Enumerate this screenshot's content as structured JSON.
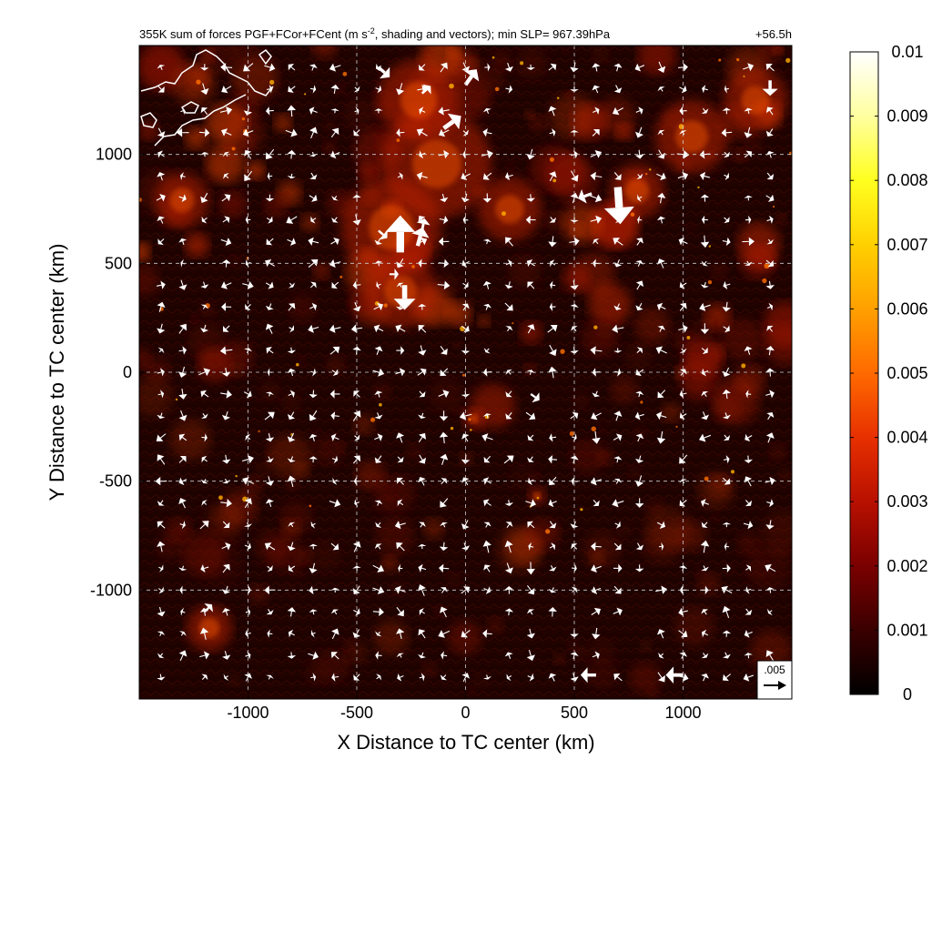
{
  "chart_data": {
    "type": "heatmap",
    "title": "355K sum of forces PGF+FCor+FCent (m s",
    "title_superscript": "-2",
    "title_suffix": ", shading and vectors); min SLP= 967.39hPa",
    "time_label": "+56.5h",
    "xlabel": "X Distance to TC center (km)",
    "ylabel": "Y Distance to TC center (km)",
    "xlim": [
      -1500,
      1500
    ],
    "ylim": [
      -1500,
      1500
    ],
    "x_ticks": [
      -1000,
      -500,
      0,
      500,
      1000
    ],
    "y_ticks": [
      -1000,
      -500,
      0,
      500,
      1000
    ],
    "x_tick_labels": [
      "-1000",
      "-500",
      "0",
      "500",
      "1000"
    ],
    "y_tick_labels": [
      "-1000",
      "-500",
      "0",
      "500",
      "1000"
    ],
    "grid": "dashed",
    "colorbar": {
      "min": 0,
      "max": 0.01,
      "ticks": [
        0,
        0.001,
        0.002,
        0.003,
        0.004,
        0.005,
        0.006,
        0.007,
        0.008,
        0.009,
        0.01
      ],
      "tick_labels": [
        "0",
        "0.001",
        "0.002",
        "0.003",
        "0.004",
        "0.005",
        "0.006",
        "0.007",
        "0.008",
        "0.009",
        "0.01"
      ],
      "colormap": [
        "#000000",
        "#3a0000",
        "#7a0000",
        "#b81000",
        "#e83000",
        "#ff6a00",
        "#ffa000",
        "#ffd000",
        "#ffff20",
        "#ffffa0",
        "#ffffff"
      ]
    },
    "reference_vector": {
      "label": ".005",
      "value": 0.005
    },
    "vectors": [
      {
        "x": -300,
        "y": 550,
        "u": 0,
        "v": 0.006
      },
      {
        "x": -220,
        "y": 580,
        "u": 0.0008,
        "v": 0.003
      },
      {
        "x": -350,
        "y": 450,
        "u": 0.0015,
        "v": 0
      },
      {
        "x": -280,
        "y": 400,
        "u": 0,
        "v": -0.004
      },
      {
        "x": 700,
        "y": 850,
        "u": 0.0004,
        "v": -0.006
      },
      {
        "x": 580,
        "y": 820,
        "u": -0.0022,
        "v": -0.0008
      },
      {
        "x": -100,
        "y": 1120,
        "u": 0.0028,
        "v": 0.002
      },
      {
        "x": 0,
        "y": 1320,
        "u": 0.0018,
        "v": 0.0025
      },
      {
        "x": -400,
        "y": 1400,
        "u": 0.0018,
        "v": -0.0016
      },
      {
        "x": -200,
        "y": 1280,
        "u": 0.0014,
        "v": 0.0012
      },
      {
        "x": 1400,
        "y": 1340,
        "u": 0,
        "v": -0.0025
      },
      {
        "x": -1200,
        "y": -1100,
        "u": 0.0012,
        "v": 0.0012
      },
      {
        "x": 600,
        "y": -1390,
        "u": -0.0025,
        "v": 0
      },
      {
        "x": 1000,
        "y": -1390,
        "u": -0.0028,
        "v": 0
      },
      {
        "x": 300,
        "y": -100,
        "u": 0.0014,
        "v": -0.001
      },
      {
        "x": -400,
        "y": 650,
        "u": 0.0014,
        "v": -0.0012
      },
      {
        "x": -200,
        "y": 650,
        "u": 0.0004,
        "v": 0.002
      }
    ]
  }
}
